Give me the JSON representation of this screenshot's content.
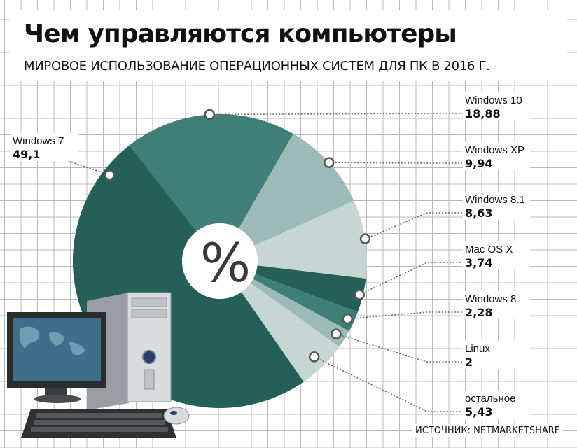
{
  "header": {
    "title": "Чем управляются компьютеры",
    "subtitle": "МИРОВОЕ ИСПОЛЬЗОВАНИЕ ОПЕРАЦИОННЫХ СИСТЕМ ДЛЯ ПК В 2016 Г."
  },
  "center_symbol": "%",
  "source": "ИСТОЧНИК: NETMARKETSHARE",
  "colors": {
    "dark": "#245f58",
    "medium": "#3f7f77",
    "light": "#9dbbb6",
    "pale": "#c5d6d3"
  },
  "chart_data": {
    "type": "pie",
    "donut": true,
    "title": "Чем управляются компьютеры",
    "subtitle": "МИРОВОЕ ИСПОЛЬЗОВАНИЕ ОПЕРАЦИОННЫХ СИСТЕМ ДЛЯ ПК В 2016 Г.",
    "categories": [
      "Windows 7",
      "Windows 10",
      "Windows XP",
      "Windows 8.1",
      "Mac OS X",
      "Windows 8",
      "Linux",
      "остальное"
    ],
    "values": [
      49.1,
      18.88,
      9.94,
      8.63,
      3.74,
      2.28,
      2,
      5.43
    ],
    "value_labels": [
      "49,1",
      "18,88",
      "9,94",
      "8,63",
      "3,74",
      "2,28",
      "2",
      "5,43"
    ],
    "slice_colors": [
      "#245f58",
      "#3f7f77",
      "#9dbbb6",
      "#c5d6d3",
      "#245f58",
      "#3f7f77",
      "#9dbbb6",
      "#c5d6d3"
    ]
  }
}
